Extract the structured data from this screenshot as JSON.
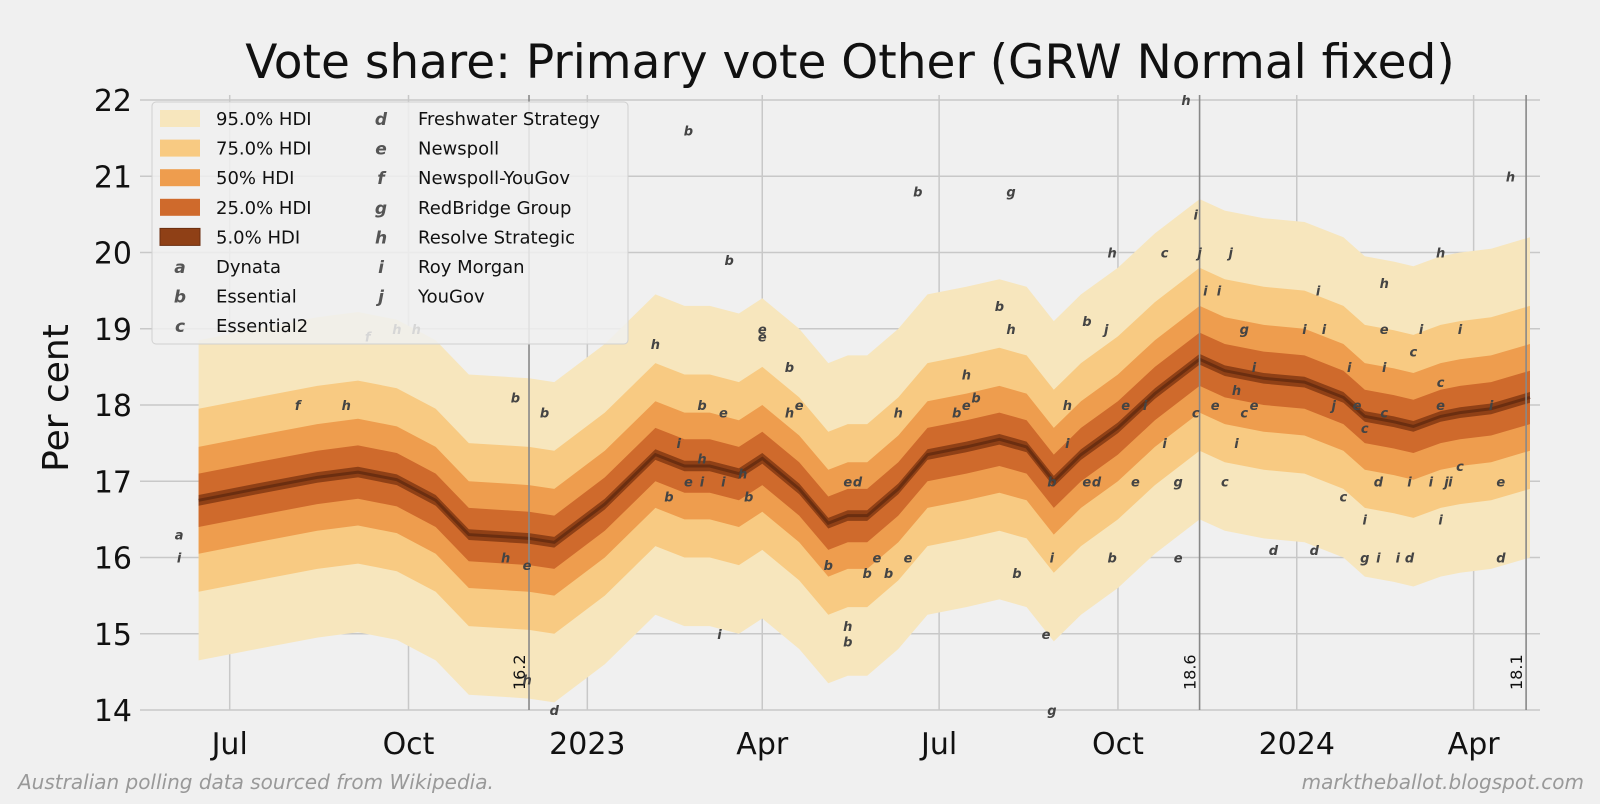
{
  "colors": {
    "background": "#f0f0f0",
    "grid": "#c8c8c8",
    "band_95": "#f7e6bd",
    "band_75": "#f8ca82",
    "band_50": "#ee9d4e",
    "band_25": "#cf6a2c",
    "band_5": "#8f4016",
    "median": "#6b2e10",
    "marker": "#444444"
  },
  "chart_data": {
    "type": "area",
    "title": "Vote share: Primary vote Other (GRW Normal fixed)",
    "xlabel": "",
    "ylabel": "Per cent",
    "ylim": [
      14,
      22
    ],
    "yticks": [
      "14",
      "15",
      "16",
      "17",
      "18",
      "19",
      "20",
      "21",
      "22"
    ],
    "xaxis_date_range": [
      "2022-05-21",
      "2024-04-30"
    ],
    "xticks": [
      {
        "date": "2022-07-01",
        "label": "Jul"
      },
      {
        "date": "2022-10-01",
        "label": "Oct"
      },
      {
        "date": "2023-01-01",
        "label": "2023"
      },
      {
        "date": "2023-04-01",
        "label": "Apr"
      },
      {
        "date": "2023-07-01",
        "label": "Jul"
      },
      {
        "date": "2023-10-01",
        "label": "Oct"
      },
      {
        "date": "2024-01-01",
        "label": "2024"
      },
      {
        "date": "2024-04-01",
        "label": "Apr"
      }
    ],
    "median": {
      "dates": [
        "2022-06-15",
        "2022-07-15",
        "2022-08-15",
        "2022-09-05",
        "2022-09-25",
        "2022-10-15",
        "2022-11-01",
        "2022-11-20",
        "2022-12-02",
        "2022-12-15",
        "2023-01-10",
        "2023-02-05",
        "2023-02-20",
        "2023-03-05",
        "2023-03-20",
        "2023-04-01",
        "2023-04-20",
        "2023-05-05",
        "2023-05-15",
        "2023-05-25",
        "2023-06-10",
        "2023-06-25",
        "2023-07-15",
        "2023-08-01",
        "2023-08-15",
        "2023-08-29",
        "2023-09-12",
        "2023-10-01",
        "2023-10-20",
        "2023-11-12",
        "2023-11-25",
        "2023-12-15",
        "2024-01-05",
        "2024-01-25",
        "2024-02-05",
        "2024-02-20",
        "2024-03-01",
        "2024-03-15",
        "2024-03-25",
        "2024-04-10",
        "2024-04-30"
      ],
      "values": [
        16.75,
        16.9,
        17.05,
        17.12,
        17.02,
        16.75,
        16.3,
        16.27,
        16.25,
        16.2,
        16.7,
        17.35,
        17.2,
        17.2,
        17.1,
        17.3,
        16.9,
        16.45,
        16.55,
        16.55,
        16.9,
        17.35,
        17.45,
        17.55,
        17.45,
        17.0,
        17.35,
        17.7,
        18.15,
        18.6,
        18.45,
        18.35,
        18.3,
        18.1,
        17.85,
        17.78,
        17.72,
        17.85,
        17.9,
        17.95,
        18.1
      ]
    },
    "bands": [
      {
        "name": "95.0% HDI",
        "half_width": 2.1
      },
      {
        "name": "75.0% HDI",
        "half_width": 1.2
      },
      {
        "name": "50% HDI",
        "half_width": 0.7
      },
      {
        "name": "25.0% HDI",
        "half_width": 0.35
      },
      {
        "name": "5.0% HDI",
        "half_width": 0.07
      }
    ],
    "pollsters": [
      {
        "marker": "a",
        "name": "Dynata"
      },
      {
        "marker": "b",
        "name": "Essential"
      },
      {
        "marker": "c",
        "name": "Essential2"
      },
      {
        "marker": "d",
        "name": "Freshwater Strategy"
      },
      {
        "marker": "e",
        "name": "Newspoll"
      },
      {
        "marker": "f",
        "name": "Newspoll-YouGov"
      },
      {
        "marker": "g",
        "name": "RedBridge Group"
      },
      {
        "marker": "h",
        "name": "Resolve Strategic"
      },
      {
        "marker": "i",
        "name": "Roy Morgan"
      },
      {
        "marker": "j",
        "name": "YouGov"
      }
    ],
    "polls": [
      {
        "m": "a",
        "date": "2022-06-05",
        "v": 16.3
      },
      {
        "m": "i",
        "date": "2022-06-05",
        "v": 16.0
      },
      {
        "m": "f",
        "date": "2022-08-05",
        "v": 18.0
      },
      {
        "m": "h",
        "date": "2022-08-30",
        "v": 18.0
      },
      {
        "m": "f",
        "date": "2022-09-10",
        "v": 18.9
      },
      {
        "m": "h",
        "date": "2022-09-25",
        "v": 19.0
      },
      {
        "m": "h",
        "date": "2022-10-05",
        "v": 19.0
      },
      {
        "m": "h",
        "date": "2022-11-20",
        "v": 16.0
      },
      {
        "m": "b",
        "date": "2022-11-25",
        "v": 18.1
      },
      {
        "m": "h",
        "date": "2022-12-01",
        "v": 14.4
      },
      {
        "m": "e",
        "date": "2022-12-01",
        "v": 15.9
      },
      {
        "m": "b",
        "date": "2022-12-10",
        "v": 17.9
      },
      {
        "m": "d",
        "date": "2022-12-15",
        "v": 14.0
      },
      {
        "m": "h",
        "date": "2023-02-05",
        "v": 18.8
      },
      {
        "m": "b",
        "date": "2023-02-12",
        "v": 16.8
      },
      {
        "m": "i",
        "date": "2023-02-17",
        "v": 17.5
      },
      {
        "m": "b",
        "date": "2023-02-22",
        "v": 21.6
      },
      {
        "m": "e",
        "date": "2023-02-22",
        "v": 17.0
      },
      {
        "m": "i",
        "date": "2023-03-01",
        "v": 17.0
      },
      {
        "m": "b",
        "date": "2023-03-01",
        "v": 18.0
      },
      {
        "m": "h",
        "date": "2023-03-01",
        "v": 17.3
      },
      {
        "m": "i",
        "date": "2023-03-10",
        "v": 15.0
      },
      {
        "m": "i",
        "date": "2023-03-12",
        "v": 17.0
      },
      {
        "m": "e",
        "date": "2023-03-12",
        "v": 17.9
      },
      {
        "m": "b",
        "date": "2023-03-15",
        "v": 19.9
      },
      {
        "m": "h",
        "date": "2023-03-22",
        "v": 17.1
      },
      {
        "m": "b",
        "date": "2023-03-25",
        "v": 16.8
      },
      {
        "m": "e",
        "date": "2023-04-01",
        "v": 19.0
      },
      {
        "m": "e",
        "date": "2023-04-01",
        "v": 18.9
      },
      {
        "m": "b",
        "date": "2023-04-15",
        "v": 18.5
      },
      {
        "m": "h",
        "date": "2023-04-15",
        "v": 17.9
      },
      {
        "m": "e",
        "date": "2023-04-20",
        "v": 18.0
      },
      {
        "m": "b",
        "date": "2023-05-05",
        "v": 15.9
      },
      {
        "m": "h",
        "date": "2023-05-15",
        "v": 15.1
      },
      {
        "m": "b",
        "date": "2023-05-15",
        "v": 14.9
      },
      {
        "m": "e",
        "date": "2023-05-15",
        "v": 17.0
      },
      {
        "m": "d",
        "date": "2023-05-20",
        "v": 17.0
      },
      {
        "m": "b",
        "date": "2023-05-25",
        "v": 15.8
      },
      {
        "m": "e",
        "date": "2023-05-30",
        "v": 16.0
      },
      {
        "m": "b",
        "date": "2023-06-05",
        "v": 15.8
      },
      {
        "m": "h",
        "date": "2023-06-10",
        "v": 17.9
      },
      {
        "m": "e",
        "date": "2023-06-15",
        "v": 16.0
      },
      {
        "m": "b",
        "date": "2023-06-20",
        "v": 20.8
      },
      {
        "m": "b",
        "date": "2023-07-10",
        "v": 17.9
      },
      {
        "m": "h",
        "date": "2023-07-15",
        "v": 18.4
      },
      {
        "m": "e",
        "date": "2023-07-15",
        "v": 18.0
      },
      {
        "m": "b",
        "date": "2023-07-20",
        "v": 18.1
      },
      {
        "m": "b",
        "date": "2023-08-01",
        "v": 19.3
      },
      {
        "m": "h",
        "date": "2023-08-07",
        "v": 19.0
      },
      {
        "m": "g",
        "date": "2023-08-07",
        "v": 20.8
      },
      {
        "m": "b",
        "date": "2023-08-10",
        "v": 15.8
      },
      {
        "m": "e",
        "date": "2023-08-25",
        "v": 15.0
      },
      {
        "m": "b",
        "date": "2023-08-28",
        "v": 17.0
      },
      {
        "m": "i",
        "date": "2023-08-28",
        "v": 16.0
      },
      {
        "m": "g",
        "date": "2023-08-28",
        "v": 14.0
      },
      {
        "m": "i",
        "date": "2023-09-05",
        "v": 17.5
      },
      {
        "m": "h",
        "date": "2023-09-05",
        "v": 18.0
      },
      {
        "m": "b",
        "date": "2023-09-15",
        "v": 19.1
      },
      {
        "m": "e",
        "date": "2023-09-15",
        "v": 17.0
      },
      {
        "m": "d",
        "date": "2023-09-20",
        "v": 17.0
      },
      {
        "m": "j",
        "date": "2023-09-25",
        "v": 19.0
      },
      {
        "m": "h",
        "date": "2023-09-28",
        "v": 20.0
      },
      {
        "m": "b",
        "date": "2023-09-28",
        "v": 16.0
      },
      {
        "m": "e",
        "date": "2023-10-05",
        "v": 18.0
      },
      {
        "m": "e",
        "date": "2023-10-10",
        "v": 17.0
      },
      {
        "m": "i",
        "date": "2023-10-15",
        "v": 18.0
      },
      {
        "m": "i",
        "date": "2023-10-25",
        "v": 17.5
      },
      {
        "m": "c",
        "date": "2023-10-25",
        "v": 20.0
      },
      {
        "m": "g",
        "date": "2023-11-01",
        "v": 17.0
      },
      {
        "m": "e",
        "date": "2023-11-01",
        "v": 16.0
      },
      {
        "m": "h",
        "date": "2023-11-05",
        "v": 22.0
      },
      {
        "m": "i",
        "date": "2023-11-10",
        "v": 20.5
      },
      {
        "m": "c",
        "date": "2023-11-10",
        "v": 17.9
      },
      {
        "m": "j",
        "date": "2023-11-12",
        "v": 20.0
      },
      {
        "m": "i",
        "date": "2023-11-15",
        "v": 19.5
      },
      {
        "m": "e",
        "date": "2023-11-20",
        "v": 18.0
      },
      {
        "m": "i",
        "date": "2023-11-22",
        "v": 19.5
      },
      {
        "m": "c",
        "date": "2023-11-25",
        "v": 17.0
      },
      {
        "m": "j",
        "date": "2023-11-28",
        "v": 20.0
      },
      {
        "m": "h",
        "date": "2023-12-01",
        "v": 18.2
      },
      {
        "m": "i",
        "date": "2023-12-01",
        "v": 17.5
      },
      {
        "m": "c",
        "date": "2023-12-05",
        "v": 17.9
      },
      {
        "m": "g",
        "date": "2023-12-05",
        "v": 19.0
      },
      {
        "m": "i",
        "date": "2023-12-10",
        "v": 18.5
      },
      {
        "m": "e",
        "date": "2023-12-10",
        "v": 18.0
      },
      {
        "m": "d",
        "date": "2023-12-20",
        "v": 16.1
      },
      {
        "m": "i",
        "date": "2024-01-05",
        "v": 19.0
      },
      {
        "m": "d",
        "date": "2024-01-10",
        "v": 16.1
      },
      {
        "m": "i",
        "date": "2024-01-12",
        "v": 19.5
      },
      {
        "m": "i",
        "date": "2024-01-15",
        "v": 19.0
      },
      {
        "m": "j",
        "date": "2024-01-20",
        "v": 18.0
      },
      {
        "m": "c",
        "date": "2024-01-25",
        "v": 16.8
      },
      {
        "m": "i",
        "date": "2024-01-28",
        "v": 18.5
      },
      {
        "m": "e",
        "date": "2024-02-01",
        "v": 18.0
      },
      {
        "m": "i",
        "date": "2024-02-05",
        "v": 16.5
      },
      {
        "m": "g",
        "date": "2024-02-05",
        "v": 16.0
      },
      {
        "m": "c",
        "date": "2024-02-05",
        "v": 17.7
      },
      {
        "m": "i",
        "date": "2024-02-12",
        "v": 16.0
      },
      {
        "m": "d",
        "date": "2024-02-12",
        "v": 17.0
      },
      {
        "m": "i",
        "date": "2024-02-15",
        "v": 18.5
      },
      {
        "m": "h",
        "date": "2024-02-15",
        "v": 19.6
      },
      {
        "m": "e",
        "date": "2024-02-15",
        "v": 19.0
      },
      {
        "m": "c",
        "date": "2024-02-15",
        "v": 17.9
      },
      {
        "m": "i",
        "date": "2024-02-22",
        "v": 16.0
      },
      {
        "m": "d",
        "date": "2024-02-28",
        "v": 16.0
      },
      {
        "m": "i",
        "date": "2024-02-28",
        "v": 17.0
      },
      {
        "m": "c",
        "date": "2024-03-01",
        "v": 18.7
      },
      {
        "m": "i",
        "date": "2024-03-05",
        "v": 19.0
      },
      {
        "m": "i",
        "date": "2024-03-10",
        "v": 17.0
      },
      {
        "m": "h",
        "date": "2024-03-15",
        "v": 20.0
      },
      {
        "m": "e",
        "date": "2024-03-15",
        "v": 18.0
      },
      {
        "m": "i",
        "date": "2024-03-15",
        "v": 16.5
      },
      {
        "m": "c",
        "date": "2024-03-15",
        "v": 18.3
      },
      {
        "m": "j",
        "date": "2024-03-18",
        "v": 17.0
      },
      {
        "m": "i",
        "date": "2024-03-20",
        "v": 17.0
      },
      {
        "m": "i",
        "date": "2024-03-25",
        "v": 19.0
      },
      {
        "m": "c",
        "date": "2024-03-25",
        "v": 17.2
      },
      {
        "m": "i",
        "date": "2024-04-10",
        "v": 18.0
      },
      {
        "m": "d",
        "date": "2024-04-15",
        "v": 16.0
      },
      {
        "m": "e",
        "date": "2024-04-15",
        "v": 17.0
      },
      {
        "m": "h",
        "date": "2024-04-20",
        "v": 21.0
      }
    ],
    "vlines": [
      {
        "date": "2022-12-02",
        "label": "16.2"
      },
      {
        "date": "2023-11-12",
        "label": "18.6"
      },
      {
        "date": "2024-04-28",
        "label": "18.1"
      }
    ],
    "legend_position": "upper-left"
  },
  "footer": {
    "left": "Australian polling data sourced from Wikipedia.",
    "right": "marktheballot.blogspot.com"
  }
}
